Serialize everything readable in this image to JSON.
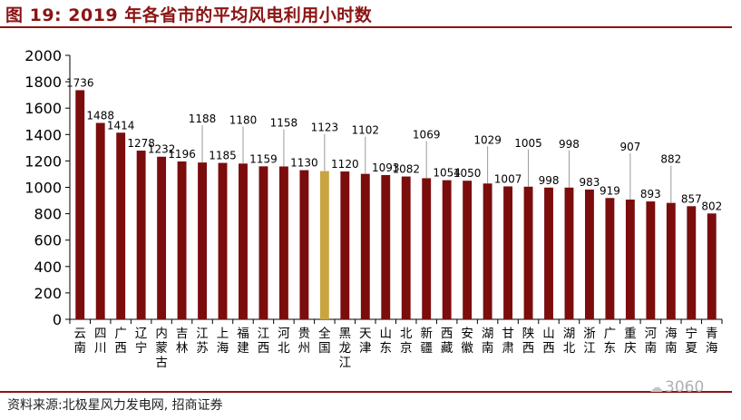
{
  "header": {
    "title": "图 19:  2019 年各省市的平均风电利用小时数"
  },
  "footer": {
    "source": "资料来源:北极星风力发电网, 招商证券"
  },
  "watermark": {
    "text": "3060",
    "icon": "wechat-icon"
  },
  "colors": {
    "bar": "#7b0d0d",
    "highlight": "#c9a542",
    "accent": "#8b1414",
    "leader": "#9a9a9a"
  },
  "chart_data": {
    "type": "bar",
    "title": "",
    "xlabel": "",
    "ylabel": "",
    "ylim": [
      0,
      2000
    ],
    "yticks": [
      0,
      200,
      400,
      600,
      800,
      1000,
      1200,
      1400,
      1600,
      1800,
      2000
    ],
    "grid": false,
    "legend": "none",
    "highlight_category": "全国",
    "categories": [
      "云南",
      "四川",
      "广西",
      "辽宁",
      "内蒙古",
      "吉林",
      "江苏",
      "上海",
      "福建",
      "江西",
      "河北",
      "贵州",
      "全国",
      "黑龙江",
      "天津",
      "山东",
      "北京",
      "新疆",
      "西藏",
      "安徽",
      "湖南",
      "甘肃",
      "陕西",
      "山西",
      "湖北",
      "浙江",
      "广东",
      "重庆",
      "河南",
      "海南",
      "宁夏",
      "青海"
    ],
    "values": [
      1736,
      1488,
      1414,
      1278,
      1232,
      1196,
      1188,
      1185,
      1180,
      1159,
      1158,
      1130,
      1123,
      1120,
      1102,
      1093,
      1082,
      1069,
      1054,
      1050,
      1029,
      1007,
      1005,
      998,
      998,
      983,
      919,
      907,
      893,
      882,
      857,
      802
    ]
  }
}
